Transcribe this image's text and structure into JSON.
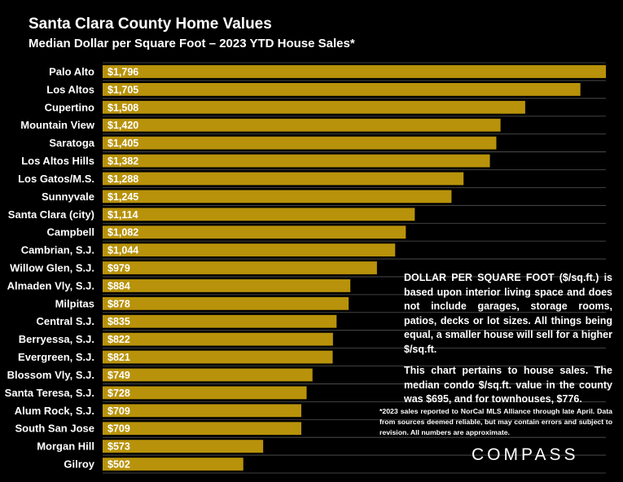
{
  "chart_data": {
    "type": "bar",
    "orientation": "horizontal",
    "title": "Santa Clara County Home Values",
    "subtitle": "Median Dollar per Square Foot – 2023 YTD House Sales*",
    "categories": [
      "Palo Alto",
      "Los Altos",
      "Cupertino",
      "Mountain View",
      "Saratoga",
      "Los Altos Hills",
      "Los Gatos/M.S.",
      "Sunnyvale",
      "Santa Clara (city)",
      "Campbell",
      "Cambrian, S.J.",
      "Willow Glen, S.J.",
      "Almaden Vly, S.J.",
      "Milpitas",
      "Central S.J.",
      "Berryessa, S.J.",
      "Evergreen, S.J.",
      "Blossom Vly, S.J.",
      "Santa Teresa, S.J.",
      "Alum Rock, S.J.",
      "South San Jose",
      "Morgan Hill",
      "Gilroy"
    ],
    "values": [
      1796,
      1705,
      1508,
      1420,
      1405,
      1382,
      1288,
      1245,
      1114,
      1082,
      1044,
      979,
      884,
      878,
      835,
      822,
      821,
      749,
      728,
      709,
      709,
      573,
      502
    ],
    "labels": [
      "$1,796",
      "$1,705",
      "$1,508",
      "$1,420",
      "$1,405",
      "$1,382",
      "$1,288",
      "$1,245",
      "$1,114",
      "$1,082",
      "$1,044",
      "$979",
      "$884",
      "$878",
      "$835",
      "$822",
      "$821",
      "$749",
      "$728",
      "$709",
      "$709",
      "$573",
      "$502"
    ],
    "xlim": [
      0,
      1796
    ],
    "grid": true,
    "bar_color": "#b8920a",
    "grid_color": "#555555"
  },
  "note": {
    "paragraph1": "DOLLAR PER SQUARE FOOT ($/sq.ft.) is based upon interior living space and does not include garages, storage rooms, patios, decks or lot sizes. All things being equal, a smaller house will sell for a higher $/sq.ft.",
    "paragraph2": "This chart pertains to house sales. The median condo $/sq.ft. value in the county was $695, and for townhouses, $776."
  },
  "footnote": "*2023 sales reported to NorCal MLS Alliance through late April. Data from sources deemed reliable, but may contain errors and subject to revision. All numbers are approximate.",
  "logo": "COMPASS"
}
